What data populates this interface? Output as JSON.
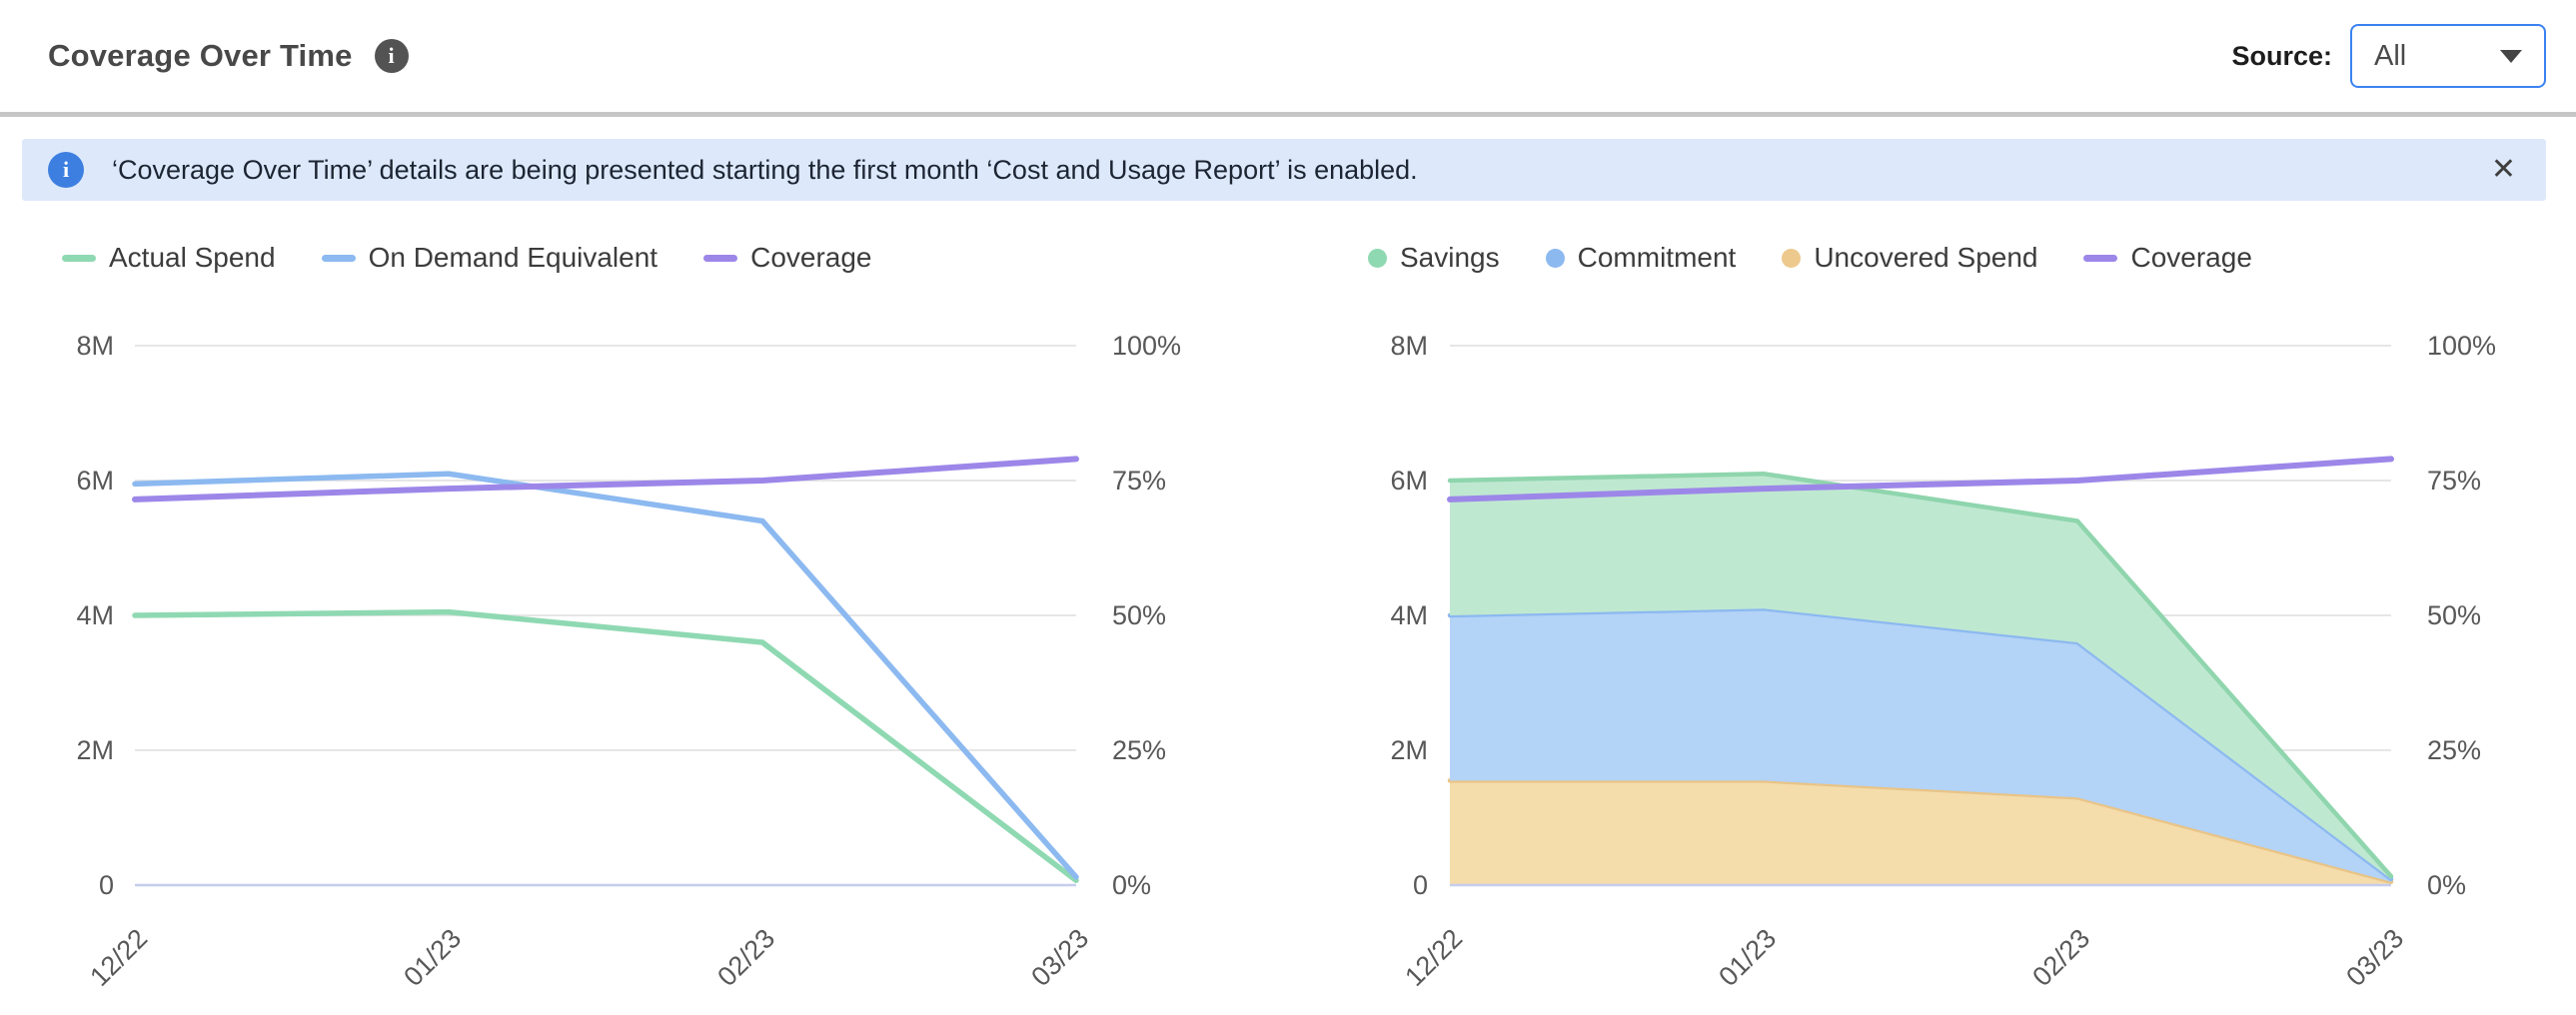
{
  "header": {
    "title": "Coverage Over Time",
    "source_label": "Source:",
    "source_value": "All"
  },
  "banner": {
    "text": "‘Coverage Over Time’ details are being presented starting the first month ‘Cost and Usage Report’ is enabled.",
    "close_icon": "✕"
  },
  "colors": {
    "green": "#8fd9b2",
    "green_fill": "#bfe8d1",
    "blue": "#8cb9f0",
    "blue_fill": "#b3d3f7",
    "orange": "#e9c487",
    "orange_fill": "#f4dcab",
    "purple": "#9c87e9",
    "grid": "#e6e6e6",
    "baseline": "#c5cdee",
    "tick_text": "#585858",
    "accent_blue": "#3b82f0"
  },
  "chart_data": [
    {
      "type": "line",
      "title": "Spend vs Coverage",
      "categories": [
        "12/22",
        "01/23",
        "02/23",
        "03/23"
      ],
      "series": [
        {
          "name": "Actual Spend",
          "kind": "line",
          "axis": "left",
          "color": "#8fd9b2",
          "values_millions": [
            4.0,
            4.05,
            3.6,
            0.07
          ]
        },
        {
          "name": "On Demand Equivalent",
          "kind": "line",
          "axis": "left",
          "color": "#8cb9f0",
          "values_millions": [
            5.95,
            6.1,
            5.4,
            0.12
          ]
        },
        {
          "name": "Coverage",
          "kind": "line",
          "axis": "right",
          "color": "#9c87e9",
          "values_percent": [
            71.5,
            73.5,
            75,
            79
          ]
        }
      ],
      "y_left": {
        "ticks": [
          "8M",
          "6M",
          "4M",
          "2M",
          "0"
        ],
        "max_millions": 8
      },
      "y_right": {
        "ticks": [
          "100%",
          "75%",
          "50%",
          "25%",
          "0%"
        ],
        "max_percent": 100
      },
      "legend": [
        {
          "label": "Actual Spend",
          "swatch": "line",
          "color": "#8fd9b2"
        },
        {
          "label": "On Demand Equivalent",
          "swatch": "line",
          "color": "#8cb9f0"
        },
        {
          "label": "Coverage",
          "swatch": "line",
          "color": "#9c87e9"
        }
      ],
      "grid": true,
      "legend_position": "top-left"
    },
    {
      "type": "area",
      "stacked": true,
      "title": "Savings / Commitment / Uncovered Spend vs Coverage",
      "categories": [
        "12/22",
        "01/23",
        "02/23",
        "03/23"
      ],
      "series": [
        {
          "name": "Uncovered Spend",
          "kind": "area",
          "axis": "left",
          "stroke": "#e9c487",
          "fill": "#f4dcab",
          "values_millions": [
            1.55,
            1.55,
            1.3,
            0.05
          ]
        },
        {
          "name": "Commitment",
          "kind": "area",
          "axis": "left",
          "stroke": "#8cb9f0",
          "fill": "#b3d3f7",
          "values_millions": [
            2.45,
            2.55,
            2.3,
            0.04
          ]
        },
        {
          "name": "Savings",
          "kind": "area",
          "axis": "left",
          "stroke": "#8fd5ad",
          "fill": "#bfe8d1",
          "values_millions": [
            2.0,
            2.0,
            1.8,
            0.04
          ]
        },
        {
          "name": "Coverage",
          "kind": "line",
          "axis": "right",
          "color": "#9c87e9",
          "values_percent": [
            71.5,
            73.5,
            75,
            79
          ]
        }
      ],
      "y_left": {
        "ticks": [
          "8M",
          "6M",
          "4M",
          "2M",
          "0"
        ],
        "max_millions": 8
      },
      "y_right": {
        "ticks": [
          "100%",
          "75%",
          "50%",
          "25%",
          "0%"
        ],
        "max_percent": 100
      },
      "legend": [
        {
          "label": "Savings",
          "swatch": "dot",
          "color": "#8fd9b2"
        },
        {
          "label": "Commitment",
          "swatch": "dot",
          "color": "#8cb9f0"
        },
        {
          "label": "Uncovered Spend",
          "swatch": "dot",
          "color": "#edc98d"
        },
        {
          "label": "Coverage",
          "swatch": "line",
          "color": "#9c87e9"
        }
      ],
      "grid": true,
      "legend_position": "top-left"
    }
  ]
}
